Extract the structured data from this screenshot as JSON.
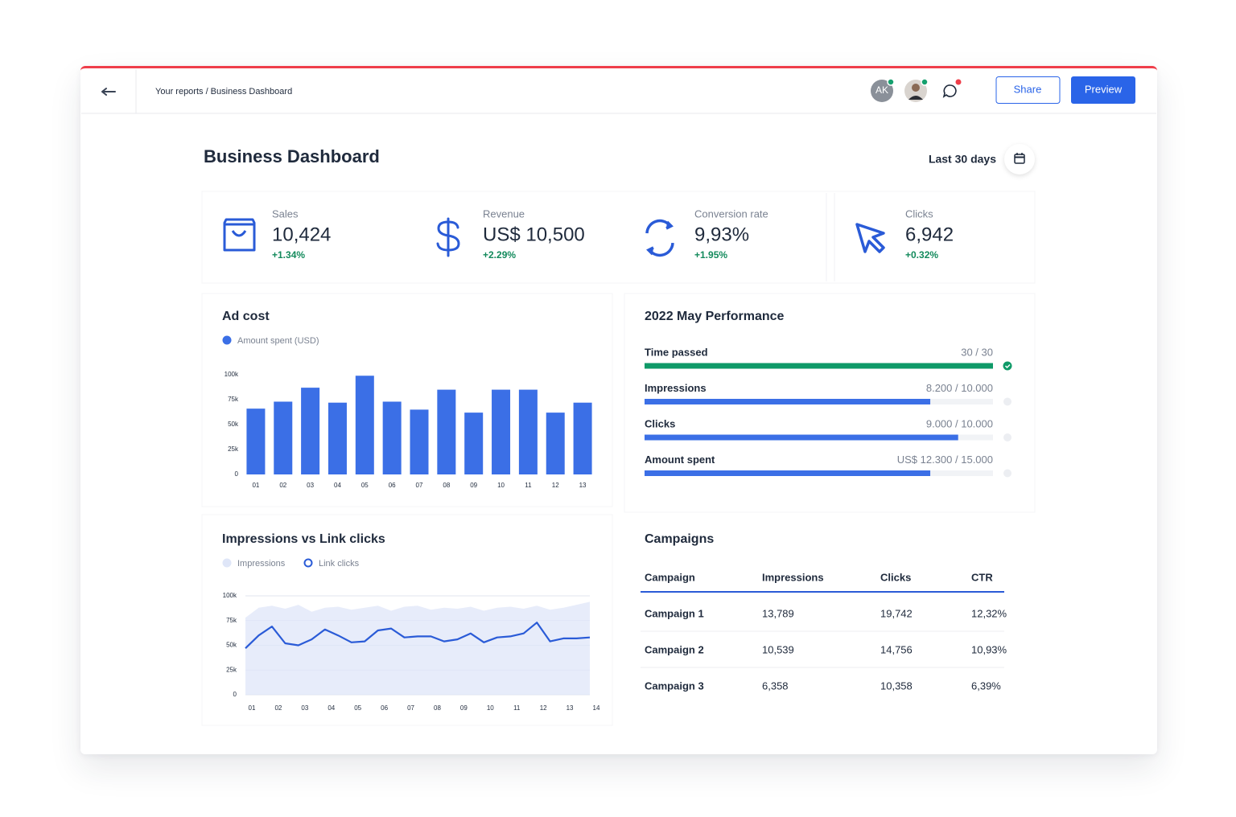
{
  "header": {
    "breadcrumb": "Your reports / Business Dashboard",
    "avatar_initials": "AK",
    "share": "Share",
    "preview": "Preview"
  },
  "title": "Business Dashboard",
  "date_range": "Last 30 days",
  "kpis": [
    {
      "label": "Sales",
      "value": "10,424",
      "change": "+1.34%"
    },
    {
      "label": "Revenue",
      "value": "US$ 10,500",
      "change": "+2.29%"
    },
    {
      "label": "Conversion rate",
      "value": "9,93%",
      "change": "+1.95%"
    },
    {
      "label": "Clicks",
      "value": "6,942",
      "change": "+0.32%"
    }
  ],
  "ad_cost": {
    "type": "bar",
    "title": "Ad cost",
    "series_name": "Amount spent (USD)",
    "color": "#3b6fe6",
    "categories": [
      "01",
      "02",
      "03",
      "04",
      "05",
      "06",
      "07",
      "08",
      "09",
      "10",
      "11",
      "12",
      "13"
    ],
    "values": [
      66000,
      73000,
      87000,
      72000,
      99000,
      73000,
      65000,
      85000,
      62000,
      85000,
      85000,
      62000,
      72000
    ],
    "ylim": [
      0,
      100000
    ],
    "yticks": [
      0,
      {
        "value": 25000,
        "label": "25k"
      },
      {
        "value": 50000,
        "label": "50k"
      },
      {
        "value": 75000,
        "label": "75k"
      },
      {
        "value": 100000,
        "label": "100k"
      }
    ],
    "grid": false
  },
  "performance": {
    "title": "2022 May Performance",
    "items": [
      {
        "name": "Time passed",
        "value": 30,
        "target": 30,
        "label": "30 / 30",
        "color": "#0f9a68"
      },
      {
        "name": "Impressions",
        "value": 8200,
        "target": 10000,
        "label": "8.200 / 10.000",
        "color": "#3b6fe6"
      },
      {
        "name": "Clicks",
        "value": 9000,
        "target": 10000,
        "label": "9.000 / 10.000",
        "color": "#3b6fe6"
      },
      {
        "name": "Amount spent",
        "value": 12300,
        "target": 15000,
        "label": "US$ 12.300 / 15.000",
        "color": "#3b6fe6"
      }
    ]
  },
  "impressions_chart": {
    "type": "line",
    "title": "Impressions vs Link clicks",
    "categories": [
      "01",
      null,
      "02",
      null,
      "03",
      null,
      "04",
      null,
      "05",
      null,
      "06",
      null,
      "07",
      null,
      "08",
      null,
      "09",
      null,
      "10",
      null,
      "11",
      null,
      "12",
      null,
      "13",
      null,
      "14"
    ],
    "series": [
      {
        "name": "Impressions",
        "color": "#dfe6f8",
        "values": [
          78000,
          88000,
          90000,
          87000,
          91000,
          84000,
          88000,
          89000,
          86000,
          88000,
          90000,
          85000,
          89000,
          90000,
          86000,
          88000,
          87000,
          89000,
          85000,
          88000,
          89000,
          87000,
          90000,
          86000,
          88000,
          91000,
          94000
        ]
      },
      {
        "name": "Link clicks",
        "color": "#2a5bd7",
        "values": [
          47000,
          60000,
          69000,
          52000,
          50000,
          56000,
          66000,
          60000,
          53000,
          54000,
          65000,
          67000,
          58000,
          59000,
          59000,
          54000,
          56000,
          62000,
          53000,
          58000,
          59000,
          62000,
          73000,
          54000,
          57000,
          57000,
          58000
        ]
      }
    ],
    "ylim": [
      0,
      100000
    ],
    "yticks": [
      0,
      {
        "value": 25000,
        "label": "25k"
      },
      {
        "value": 50000,
        "label": "50k"
      },
      {
        "value": 75000,
        "label": "75k"
      },
      {
        "value": 100000,
        "label": "100k"
      }
    ],
    "grid": true
  },
  "campaigns": {
    "title": "Campaigns",
    "columns": [
      "Campaign",
      "Impressions",
      "Clicks",
      "CTR"
    ],
    "rows": [
      [
        "Campaign 1",
        "13,789",
        "19,742",
        "12,32%"
      ],
      [
        "Campaign 2",
        "10,539",
        "14,756",
        "10,93%"
      ],
      [
        "Campaign 3",
        "6,358",
        "10,358",
        "6,39%"
      ]
    ]
  }
}
